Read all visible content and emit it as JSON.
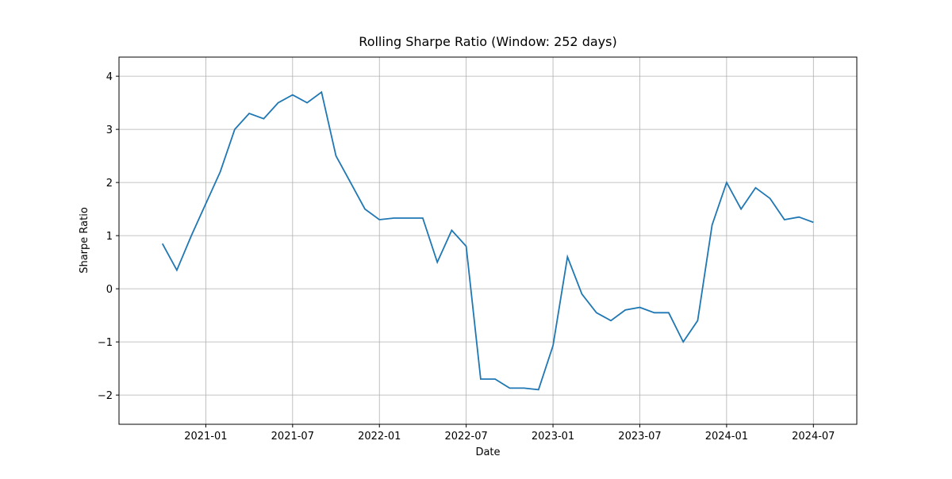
{
  "chart_data": {
    "type": "line",
    "title": "Rolling Sharpe Ratio (Window: 252 days)",
    "x_label": "Date",
    "y_label": "Sharpe Ratio",
    "x": [
      "2020-10",
      "2020-11",
      "2020-12",
      "2021-01",
      "2021-02",
      "2021-03",
      "2021-04",
      "2021-05",
      "2021-06",
      "2021-07",
      "2021-08",
      "2021-09",
      "2021-10",
      "2021-11",
      "2021-12",
      "2022-01",
      "2022-02",
      "2022-03",
      "2022-04",
      "2022-05",
      "2022-06",
      "2022-07",
      "2022-08",
      "2022-09",
      "2022-10",
      "2022-11",
      "2022-12",
      "2023-01",
      "2023-02",
      "2023-03",
      "2023-04",
      "2023-05",
      "2023-06",
      "2023-07",
      "2023-08",
      "2023-09",
      "2023-10",
      "2023-11",
      "2023-12",
      "2024-01",
      "2024-02",
      "2024-03",
      "2024-04",
      "2024-05",
      "2024-06",
      "2024-07"
    ],
    "series": [
      {
        "name": "Sharpe Ratio",
        "color": "#1f77b4",
        "values": [
          0.85,
          0.35,
          1.0,
          1.6,
          2.2,
          3.0,
          3.3,
          3.2,
          3.5,
          3.65,
          3.5,
          3.7,
          2.5,
          2.0,
          1.5,
          1.3,
          1.33,
          1.33,
          1.33,
          0.5,
          1.1,
          0.8,
          -1.7,
          -1.7,
          -1.87,
          -1.87,
          -1.9,
          -1.07,
          0.6,
          -0.1,
          -0.45,
          -0.6,
          -0.4,
          -0.35,
          -0.45,
          -0.45,
          -1.0,
          -0.6,
          1.2,
          2.0,
          1.5,
          1.9,
          1.7,
          1.3,
          1.35,
          1.25
        ]
      }
    ],
    "xlim": [
      "2020-07",
      "2024-10"
    ],
    "xticks": [
      "2021-01",
      "2021-07",
      "2022-01",
      "2022-07",
      "2023-01",
      "2023-07",
      "2024-01",
      "2024-07"
    ],
    "ylim": [
      -2.55,
      4.36
    ],
    "yticks": [
      {
        "value": -2,
        "label": "−2"
      },
      {
        "value": -1,
        "label": "−1"
      },
      0,
      1,
      2,
      3,
      4
    ],
    "grid": true
  }
}
